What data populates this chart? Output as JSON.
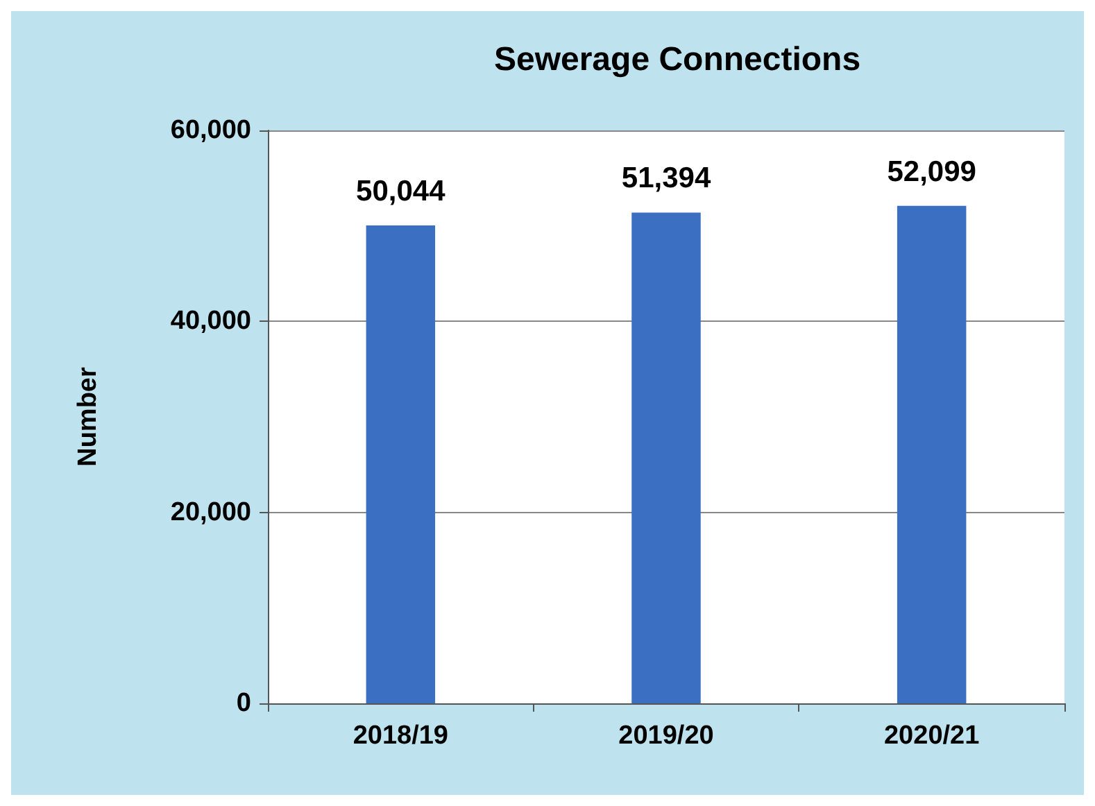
{
  "chart_data": {
    "type": "bar",
    "title": "Sewerage Connections",
    "ylabel": "Number",
    "categories": [
      "2018/19",
      "2019/20",
      "2020/21"
    ],
    "values": [
      50044,
      51394,
      52099
    ],
    "value_labels": [
      "50,044",
      "51,394",
      "52,099"
    ],
    "color": "#3b6fc2",
    "ylim": [
      0,
      60000
    ],
    "yticks": [
      {
        "value": 0,
        "label": "0"
      },
      {
        "value": 20000,
        "label": "20,000"
      },
      {
        "value": 40000,
        "label": "40,000"
      },
      {
        "value": 60000,
        "label": "60,000"
      }
    ],
    "grid": true
  }
}
